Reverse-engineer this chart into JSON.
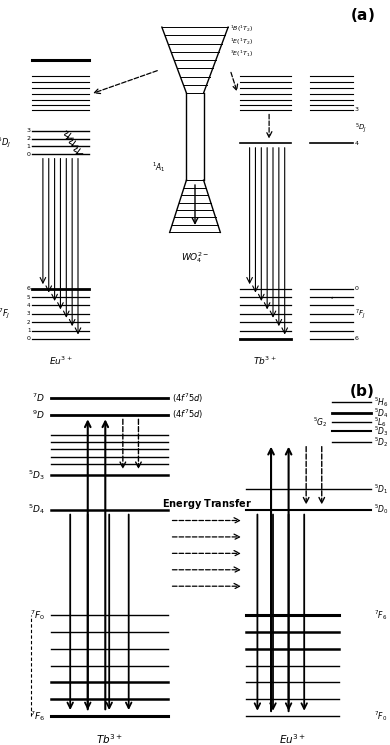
{
  "fig_width": 3.9,
  "fig_height": 7.45,
  "dpi": 100,
  "bg_color": "#ffffff"
}
